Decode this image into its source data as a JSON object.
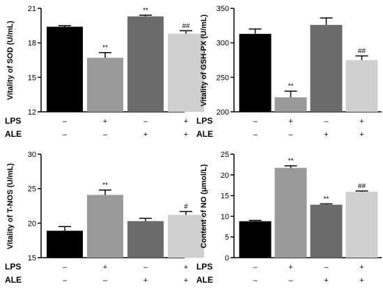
{
  "chart_data": [
    {
      "type": "bar",
      "ylabel": "Vitality of SOD (U/mL)",
      "ylim": [
        12,
        21
      ],
      "yticks": [
        "12",
        "15",
        "18",
        "21"
      ],
      "values": [
        19.4,
        16.7,
        20.3,
        18.8
      ],
      "errors": [
        0.1,
        0.45,
        0.1,
        0.25
      ],
      "significance": [
        "",
        "**",
        "**",
        "##"
      ],
      "bar_colors": [
        "#000000",
        "#9a9a9a",
        "#6b6b6b",
        "#cfcfcf"
      ],
      "rows": [
        {
          "label": "LPS",
          "marks": [
            "–",
            "+",
            "–",
            "+"
          ]
        },
        {
          "label": "ALE",
          "marks": [
            "–",
            "–",
            "+",
            "+"
          ]
        }
      ]
    },
    {
      "type": "bar",
      "ylabel": "Vitality of GSH-PX (U/mL)",
      "ylim": [
        200,
        350
      ],
      "yticks": [
        "200",
        "250",
        "300",
        "350"
      ],
      "values": [
        313,
        221,
        326,
        275
      ],
      "errors": [
        7,
        9,
        10,
        6
      ],
      "significance": [
        "",
        "**",
        "",
        "##"
      ],
      "bar_colors": [
        "#000000",
        "#9a9a9a",
        "#6b6b6b",
        "#cfcfcf"
      ],
      "rows": [
        {
          "label": "LPS",
          "marks": [
            "–",
            "+",
            "–",
            "+"
          ]
        },
        {
          "label": "ALE",
          "marks": [
            "–",
            "–",
            "+",
            "+"
          ]
        }
      ]
    },
    {
      "type": "bar",
      "ylabel": "Vitality of T-NOS (U/mL)",
      "ylim": [
        15,
        30
      ],
      "yticks": [
        "15",
        "20",
        "25",
        "30"
      ],
      "values": [
        18.9,
        24.1,
        20.3,
        21.2
      ],
      "errors": [
        0.6,
        0.7,
        0.4,
        0.5
      ],
      "significance": [
        "",
        "**",
        "",
        "#"
      ],
      "bar_colors": [
        "#000000",
        "#9a9a9a",
        "#6b6b6b",
        "#cfcfcf"
      ],
      "rows": [
        {
          "label": "LPS",
          "marks": [
            "–",
            "+",
            "–",
            "+"
          ]
        },
        {
          "label": "ALE",
          "marks": [
            "–",
            "–",
            "+",
            "+"
          ]
        }
      ]
    },
    {
      "type": "bar",
      "ylabel": "Content of NO (μmol/L)",
      "ylim": [
        0,
        25
      ],
      "yticks": [
        "0",
        "5",
        "10",
        "15",
        "20",
        "25"
      ],
      "values": [
        8.8,
        21.7,
        12.8,
        15.9
      ],
      "errors": [
        0.2,
        0.5,
        0.2,
        0.2
      ],
      "significance": [
        "",
        "**",
        "**",
        "##"
      ],
      "bar_colors": [
        "#000000",
        "#9a9a9a",
        "#6b6b6b",
        "#cfcfcf"
      ],
      "rows": [
        {
          "label": "LPS",
          "marks": [
            "–",
            "+",
            "–",
            "+"
          ]
        },
        {
          "label": "ALE",
          "marks": [
            "–",
            "–",
            "+",
            "+"
          ]
        }
      ]
    }
  ]
}
